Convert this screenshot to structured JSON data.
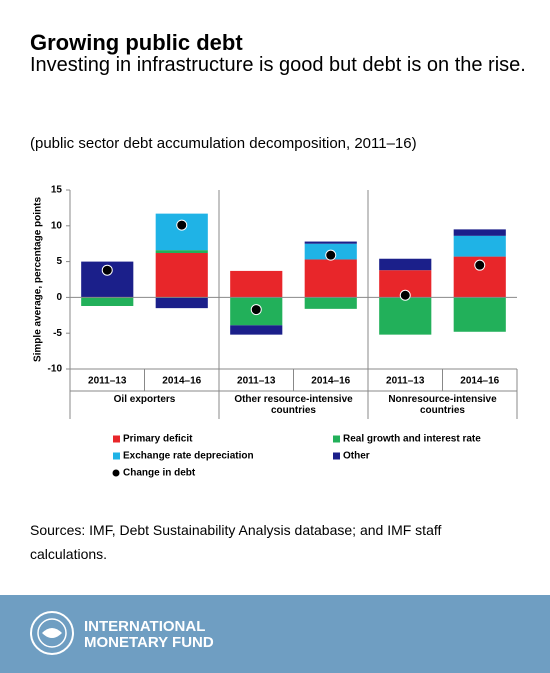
{
  "header": {
    "title": "Growing public debt",
    "subtitle": "Investing in infrastructure is good but debt is on the rise."
  },
  "chart_data": {
    "type": "bar",
    "stacked": true,
    "subtitle": "(public sector debt accumulation decomposition, 2011–16)",
    "y_label": "Simple average, percentage points",
    "categories": [
      "2011–13",
      "2014–16",
      "2011–13",
      "2014–16",
      "2011–13",
      "2014–16"
    ],
    "groups": [
      "Oil exporters",
      "Other resource-intensive countries",
      "Nonresource-intensive countries"
    ],
    "ylim": [
      -10,
      15
    ],
    "yticks": [
      -10,
      -5,
      0,
      5,
      10,
      15
    ],
    "grid": false,
    "series": [
      {
        "name": "Primary deficit",
        "color": "#e8262a",
        "values": [
          0,
          6.2,
          3.7,
          5.3,
          3.8,
          5.7
        ]
      },
      {
        "name": "Real growth and interest rate",
        "color": "#22b05a",
        "values": [
          -1.2,
          0.4,
          -3.9,
          -1.6,
          -5.2,
          -4.8
        ]
      },
      {
        "name": "Exchange rate depreciation",
        "color": "#1fb3e6",
        "values": [
          0,
          5.1,
          0,
          2.2,
          0,
          2.9
        ]
      },
      {
        "name": "Other",
        "color": "#1b1f8a",
        "values": [
          5,
          -1.5,
          -1.3,
          0.3,
          1.6,
          0.9
        ]
      },
      {
        "name": "Change in debt",
        "color": "#000000",
        "type": "scatter",
        "values": [
          3.8,
          10.1,
          -1.7,
          5.9,
          0.3,
          4.5
        ]
      }
    ]
  },
  "sources": "Sources: IMF, Debt Sustainability Analysis database; and IMF staff calculations.",
  "footer": {
    "org_name": [
      "INTERNATIONAL",
      "MONETARY FUND"
    ]
  }
}
